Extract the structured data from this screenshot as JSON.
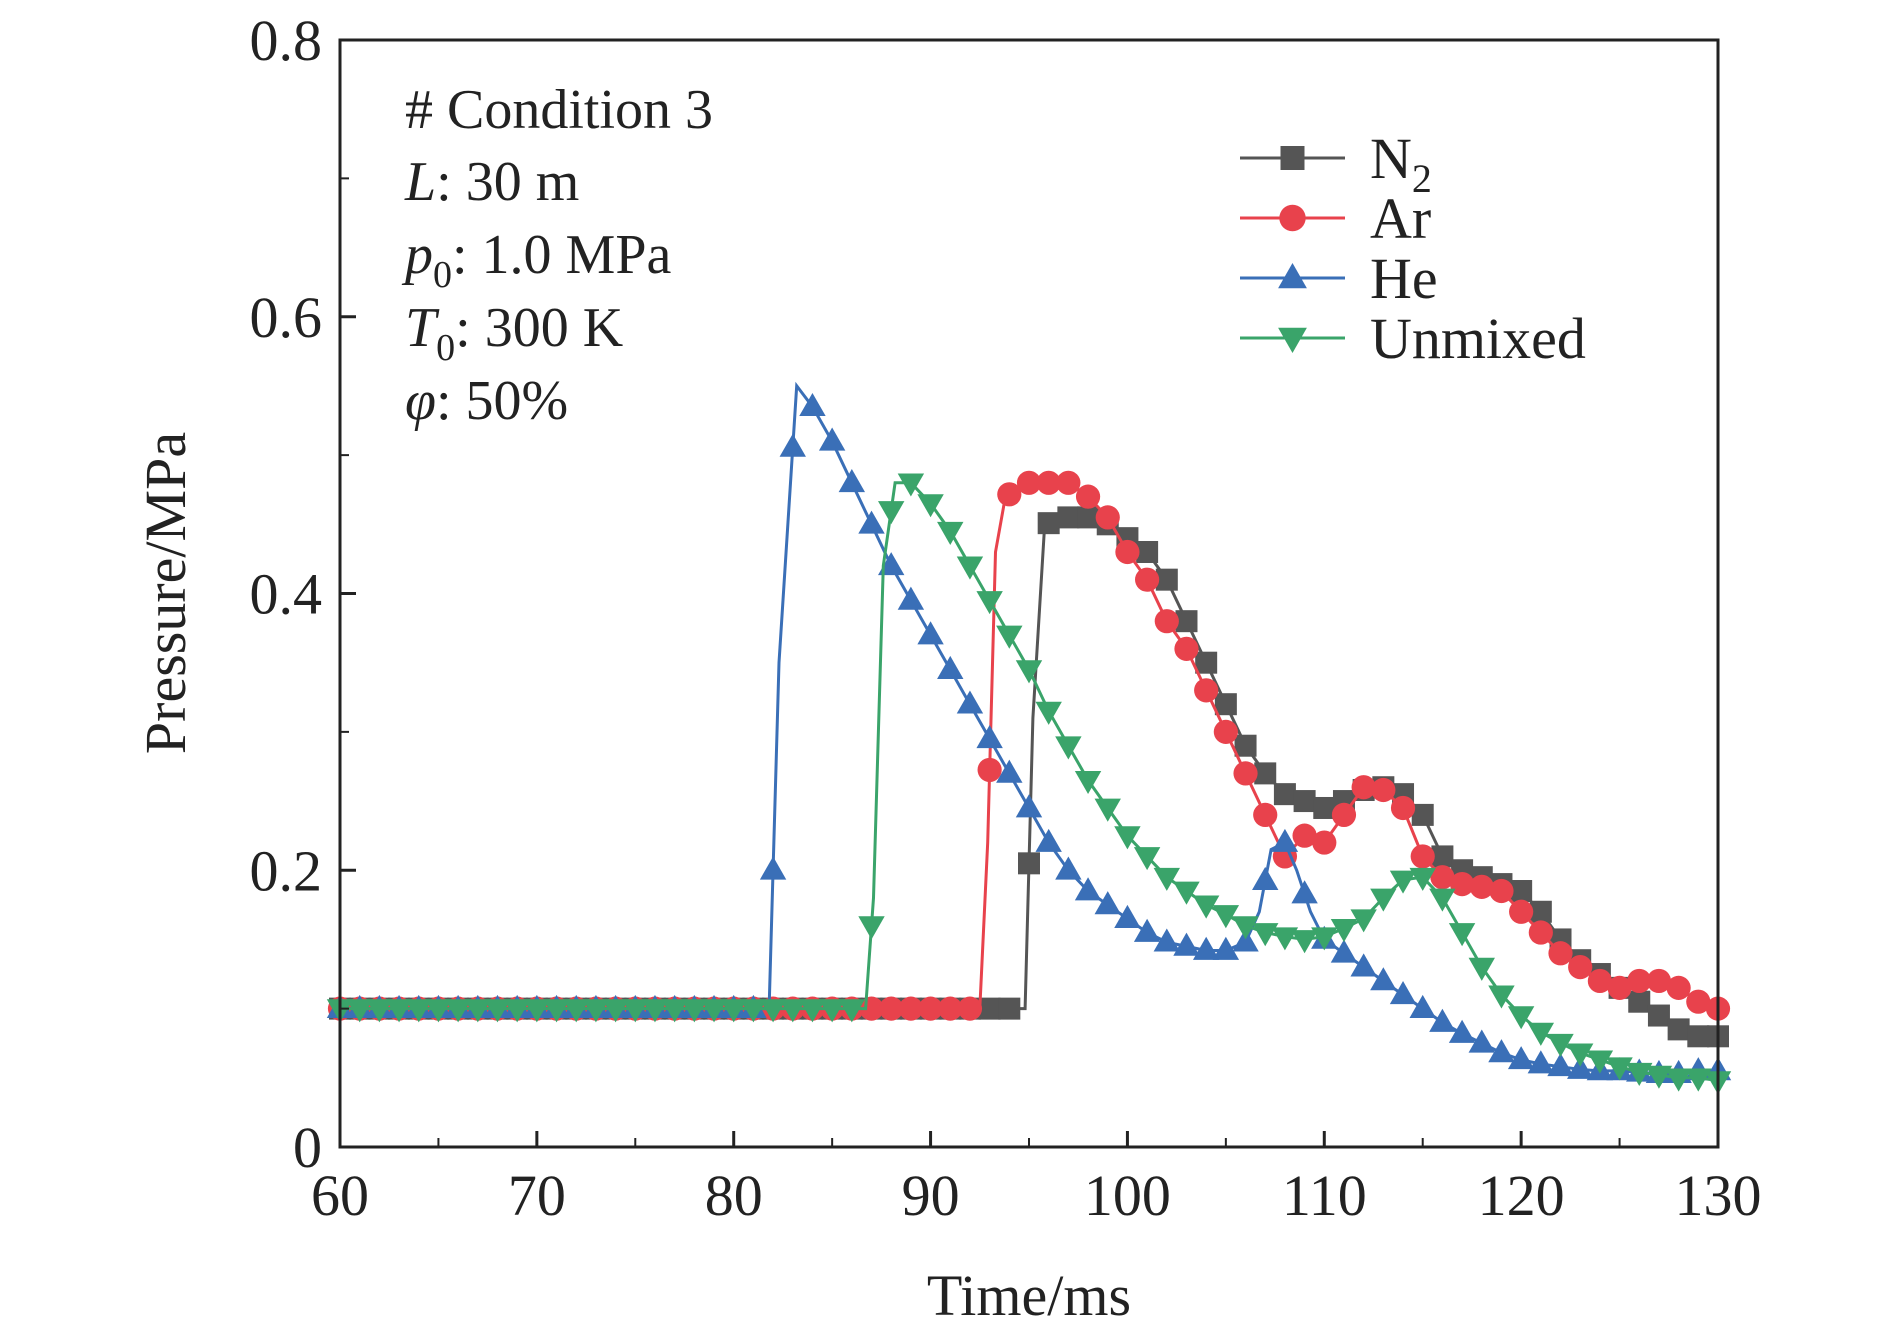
{
  "chart_data": {
    "type": "line",
    "xlabel": "Time/ms",
    "ylabel": "Pressure/MPa",
    "xlim": [
      60,
      130
    ],
    "ylim": [
      0,
      0.8
    ],
    "xticks": [
      "60",
      "70",
      "80",
      "90",
      "100",
      "110",
      "120",
      "130"
    ],
    "yticks": [
      "0",
      "0.2",
      "0.4",
      "0.6",
      "0.8"
    ],
    "grid": false,
    "legend_position": "top-right",
    "annotation": {
      "title": "# Condition 3",
      "lines": [
        {
          "symbol": "L",
          "sub": "",
          "value": ": 30 m"
        },
        {
          "symbol": "p",
          "sub": "0",
          "value": ": 1.0 MPa"
        },
        {
          "symbol": "T",
          "sub": "0",
          "value": ": 300 K"
        },
        {
          "symbol": "φ",
          "sub": "",
          "value": ": 50%"
        }
      ]
    },
    "series": [
      {
        "name": "N2",
        "name_base": "N",
        "name_sub": "2",
        "color": "#555555",
        "marker": "square",
        "points": [
          [
            60,
            0.1
          ],
          [
            94.8,
            0.1
          ],
          [
            95.2,
            0.31
          ],
          [
            95.8,
            0.45
          ],
          [
            97,
            0.455
          ],
          [
            98,
            0.455
          ],
          [
            99,
            0.45
          ],
          [
            100,
            0.44
          ],
          [
            101,
            0.43
          ],
          [
            102,
            0.41
          ],
          [
            103,
            0.38
          ],
          [
            104,
            0.35
          ],
          [
            105,
            0.32
          ],
          [
            106,
            0.29
          ],
          [
            107,
            0.27
          ],
          [
            108,
            0.255
          ],
          [
            109,
            0.25
          ],
          [
            110,
            0.245
          ],
          [
            111,
            0.25
          ],
          [
            112,
            0.258
          ],
          [
            113,
            0.26
          ],
          [
            114,
            0.255
          ],
          [
            115,
            0.24
          ],
          [
            116,
            0.21
          ],
          [
            117,
            0.2
          ],
          [
            118,
            0.195
          ],
          [
            119,
            0.19
          ],
          [
            120,
            0.185
          ],
          [
            121,
            0.17
          ],
          [
            122,
            0.15
          ],
          [
            123,
            0.135
          ],
          [
            124,
            0.125
          ],
          [
            125,
            0.115
          ],
          [
            126,
            0.105
          ],
          [
            127,
            0.095
          ],
          [
            128,
            0.085
          ],
          [
            129,
            0.08
          ],
          [
            130,
            0.08
          ]
        ]
      },
      {
        "name": "Ar",
        "name_base": "Ar",
        "name_sub": "",
        "color": "#e8424c",
        "marker": "circle",
        "points": [
          [
            60,
            0.1
          ],
          [
            92.5,
            0.1
          ],
          [
            92.9,
            0.22
          ],
          [
            93.3,
            0.43
          ],
          [
            93.8,
            0.47
          ],
          [
            95,
            0.48
          ],
          [
            96,
            0.48
          ],
          [
            97,
            0.48
          ],
          [
            98,
            0.47
          ],
          [
            99,
            0.455
          ],
          [
            100,
            0.43
          ],
          [
            101,
            0.41
          ],
          [
            102,
            0.38
          ],
          [
            103,
            0.36
          ],
          [
            104,
            0.33
          ],
          [
            105,
            0.3
          ],
          [
            106,
            0.27
          ],
          [
            107,
            0.24
          ],
          [
            108,
            0.21
          ],
          [
            109,
            0.225
          ],
          [
            110,
            0.22
          ],
          [
            111,
            0.24
          ],
          [
            112,
            0.26
          ],
          [
            113,
            0.258
          ],
          [
            114,
            0.245
          ],
          [
            115,
            0.21
          ],
          [
            116,
            0.195
          ],
          [
            117,
            0.19
          ],
          [
            118,
            0.188
          ],
          [
            119,
            0.185
          ],
          [
            120,
            0.17
          ],
          [
            121,
            0.155
          ],
          [
            122,
            0.14
          ],
          [
            123,
            0.13
          ],
          [
            124,
            0.12
          ],
          [
            125,
            0.115
          ],
          [
            126,
            0.12
          ],
          [
            127,
            0.12
          ],
          [
            128,
            0.115
          ],
          [
            129,
            0.105
          ],
          [
            130,
            0.1
          ]
        ]
      },
      {
        "name": "He",
        "name_base": "He",
        "name_sub": "",
        "color": "#3a6fb7",
        "marker": "triangle-up",
        "points": [
          [
            60,
            0.1
          ],
          [
            81.8,
            0.1
          ],
          [
            82.3,
            0.35
          ],
          [
            83.2,
            0.55
          ],
          [
            84,
            0.535
          ],
          [
            85,
            0.51
          ],
          [
            86,
            0.48
          ],
          [
            87,
            0.45
          ],
          [
            88,
            0.42
          ],
          [
            89,
            0.395
          ],
          [
            90,
            0.37
          ],
          [
            91,
            0.345
          ],
          [
            92,
            0.32
          ],
          [
            93,
            0.295
          ],
          [
            94,
            0.27
          ],
          [
            95,
            0.245
          ],
          [
            96,
            0.22
          ],
          [
            97,
            0.2
          ],
          [
            98,
            0.185
          ],
          [
            99,
            0.175
          ],
          [
            100,
            0.165
          ],
          [
            101,
            0.155
          ],
          [
            102,
            0.148
          ],
          [
            103,
            0.145
          ],
          [
            104,
            0.142
          ],
          [
            105,
            0.142
          ],
          [
            106,
            0.148
          ],
          [
            106.7,
            0.17
          ],
          [
            107.3,
            0.215
          ],
          [
            108,
            0.22
          ],
          [
            108.6,
            0.2
          ],
          [
            109.3,
            0.17
          ],
          [
            110,
            0.15
          ],
          [
            111,
            0.14
          ],
          [
            112,
            0.13
          ],
          [
            113,
            0.12
          ],
          [
            114,
            0.11
          ],
          [
            115,
            0.1
          ],
          [
            116,
            0.09
          ],
          [
            117,
            0.082
          ],
          [
            118,
            0.075
          ],
          [
            119,
            0.068
          ],
          [
            120,
            0.063
          ],
          [
            121,
            0.06
          ],
          [
            122,
            0.058
          ],
          [
            123,
            0.056
          ],
          [
            124,
            0.055
          ],
          [
            125,
            0.055
          ],
          [
            126,
            0.054
          ],
          [
            127,
            0.053
          ],
          [
            128,
            0.053
          ],
          [
            129,
            0.055
          ],
          [
            130,
            0.055
          ]
        ]
      },
      {
        "name": "Unmixed",
        "name_base": "Unmixed",
        "name_sub": "",
        "color": "#3aa46a",
        "marker": "triangle-down",
        "points": [
          [
            60,
            0.1
          ],
          [
            86.7,
            0.1
          ],
          [
            87.1,
            0.18
          ],
          [
            87.6,
            0.42
          ],
          [
            88.2,
            0.48
          ],
          [
            89,
            0.48
          ],
          [
            90,
            0.465
          ],
          [
            91,
            0.445
          ],
          [
            92,
            0.42
          ],
          [
            93,
            0.395
          ],
          [
            94,
            0.37
          ],
          [
            95,
            0.345
          ],
          [
            96,
            0.315
          ],
          [
            97,
            0.29
          ],
          [
            98,
            0.265
          ],
          [
            99,
            0.245
          ],
          [
            100,
            0.225
          ],
          [
            101,
            0.21
          ],
          [
            102,
            0.195
          ],
          [
            103,
            0.185
          ],
          [
            104,
            0.175
          ],
          [
            105,
            0.168
          ],
          [
            106,
            0.16
          ],
          [
            107,
            0.155
          ],
          [
            108,
            0.152
          ],
          [
            109,
            0.15
          ],
          [
            110,
            0.152
          ],
          [
            111,
            0.158
          ],
          [
            112,
            0.165
          ],
          [
            113,
            0.18
          ],
          [
            114,
            0.193
          ],
          [
            115,
            0.195
          ],
          [
            116,
            0.18
          ],
          [
            117,
            0.155
          ],
          [
            118,
            0.13
          ],
          [
            119,
            0.11
          ],
          [
            120,
            0.095
          ],
          [
            121,
            0.083
          ],
          [
            122,
            0.075
          ],
          [
            123,
            0.068
          ],
          [
            124,
            0.063
          ],
          [
            125,
            0.058
          ],
          [
            126,
            0.054
          ],
          [
            127,
            0.052
          ],
          [
            128,
            0.05
          ],
          [
            129,
            0.05
          ],
          [
            130,
            0.048
          ]
        ]
      }
    ]
  }
}
